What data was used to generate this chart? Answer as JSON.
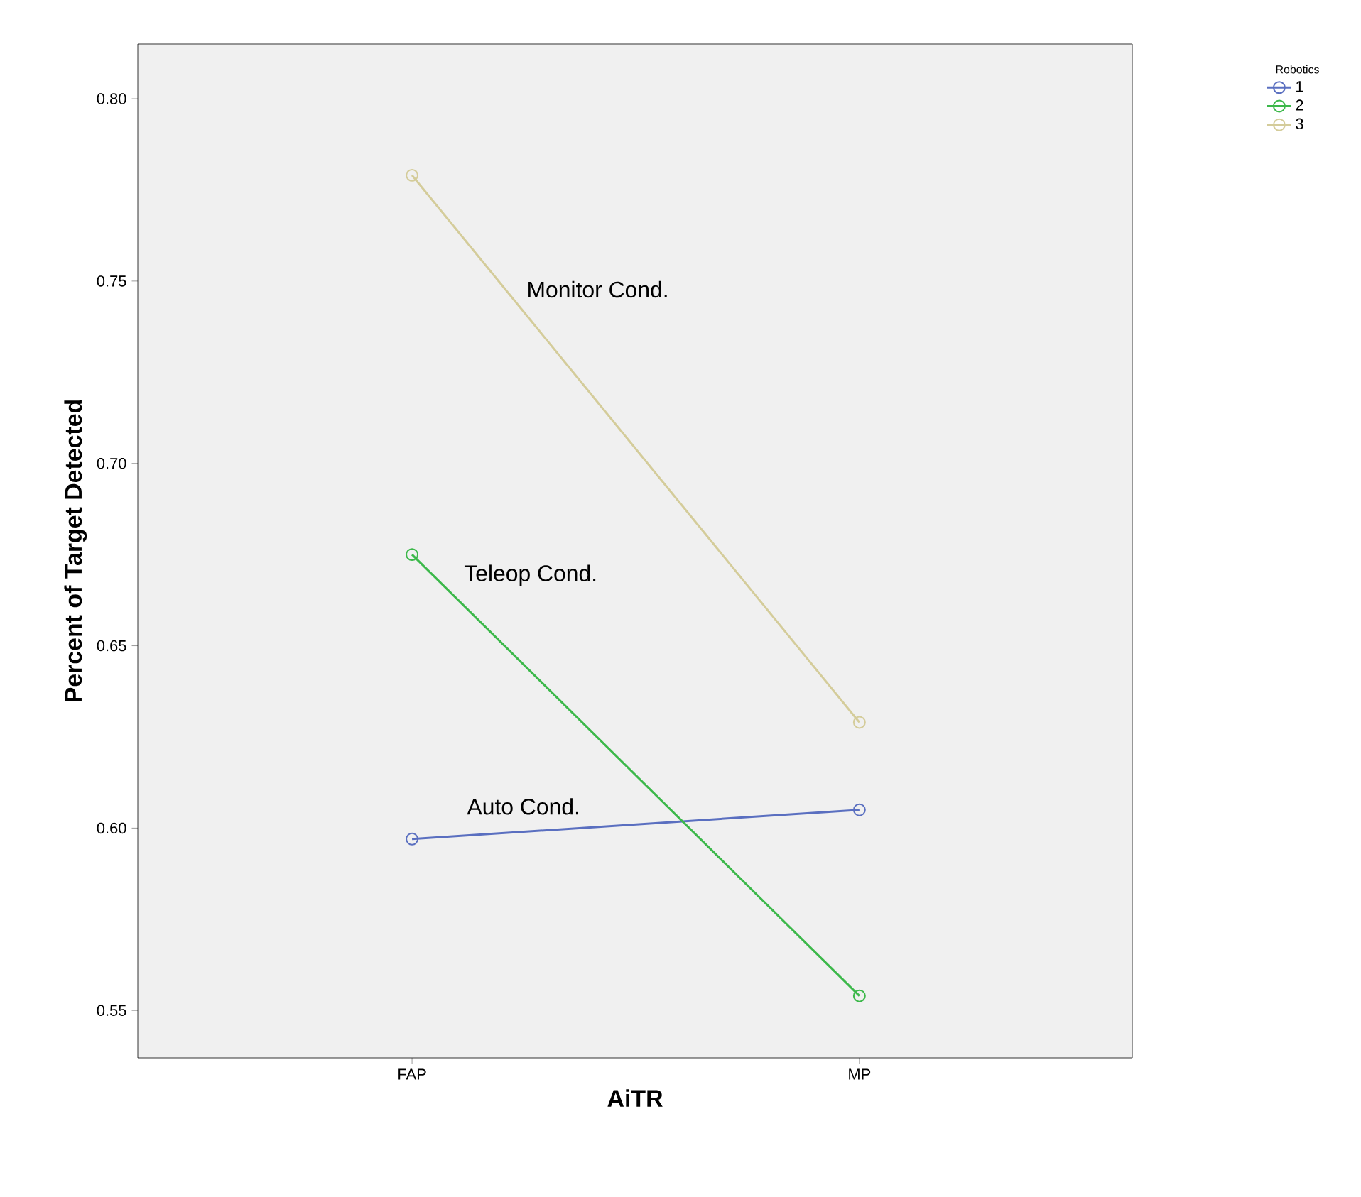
{
  "chart_data": {
    "type": "line",
    "xlabel": "AiTR",
    "ylabel": "Percent of Target Detected",
    "legend_title": "Robotics",
    "categories": [
      "FAP",
      "MP"
    ],
    "series": [
      {
        "name": "1",
        "color": "#5a6fc0",
        "values": [
          0.597,
          0.605
        ]
      },
      {
        "name": "2",
        "color": "#3cb84a",
        "values": [
          0.675,
          0.554
        ]
      },
      {
        "name": "3",
        "color": "#d4cc9a",
        "values": [
          0.779,
          0.629
        ]
      }
    ],
    "ylim": [
      0.537,
      0.815
    ],
    "yticks": [
      {
        "value": 0.55,
        "label": "0.55"
      },
      {
        "value": 0.6,
        "label": "0.60"
      },
      {
        "value": 0.65,
        "label": "0.65"
      },
      {
        "value": 0.7,
        "label": "0.70"
      },
      {
        "value": 0.75,
        "label": "0.75"
      },
      {
        "value": 0.8,
        "label": "0.80"
      }
    ],
    "annotations": [
      "Monitor Cond.",
      "Teleop Cond.",
      "Auto Cond."
    ],
    "marker": "circle",
    "line_style": "solid",
    "legend": "top right",
    "grid": false
  }
}
